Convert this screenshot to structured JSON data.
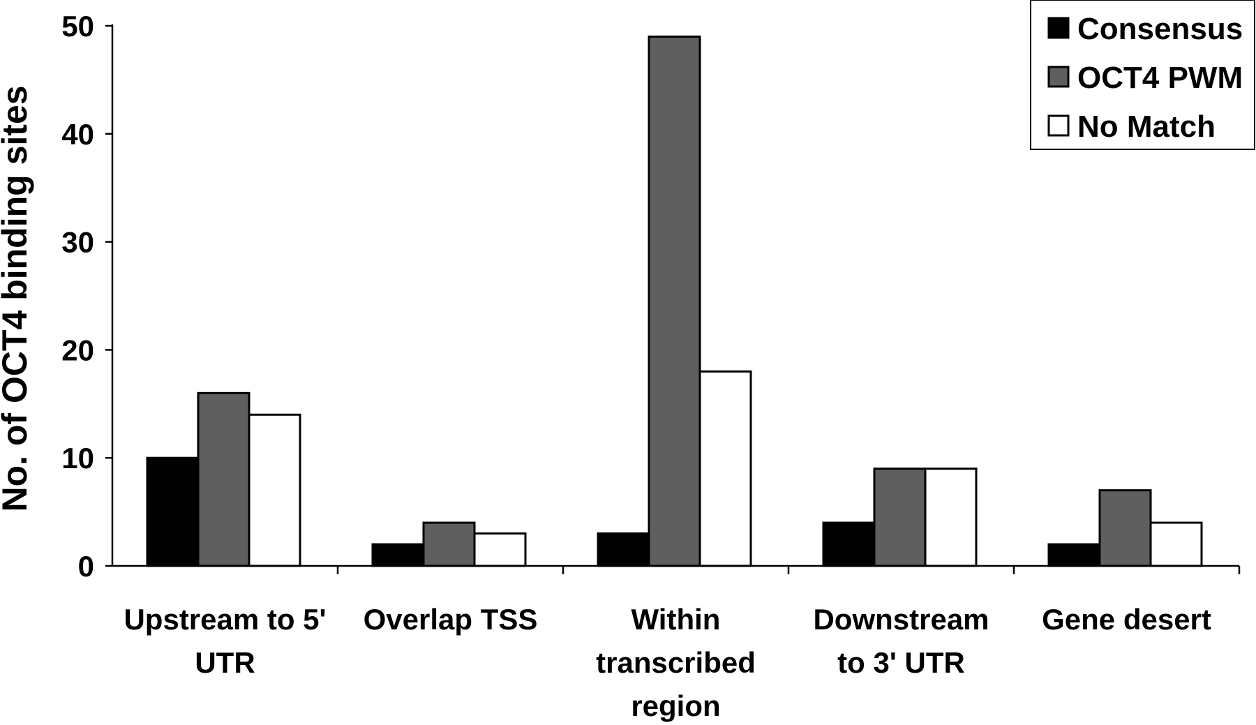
{
  "chart_data": {
    "type": "bar",
    "categories": [
      [
        "Upstream to 5'",
        "UTR"
      ],
      [
        "Overlap TSS"
      ],
      [
        "Within",
        "transcribed",
        "region"
      ],
      [
        "Downstream",
        "to 3' UTR"
      ],
      [
        "Gene desert"
      ]
    ],
    "series": [
      {
        "name": "Consensus",
        "values": [
          10,
          2,
          3,
          4,
          2
        ],
        "color": "#000000"
      },
      {
        "name": "OCT4 PWM",
        "values": [
          16,
          4,
          49,
          9,
          7
        ],
        "color": "#5f5f5f"
      },
      {
        "name": "No Match",
        "values": [
          14,
          3,
          18,
          9,
          4
        ],
        "color": "#ffffff"
      }
    ],
    "ylabel": "No. of OCT4 binding sites",
    "xlabel": "",
    "ylim": [
      0,
      50
    ],
    "yticks": [
      0,
      10,
      20,
      30,
      40,
      50
    ],
    "grid": false,
    "legend_position": "top-right"
  }
}
